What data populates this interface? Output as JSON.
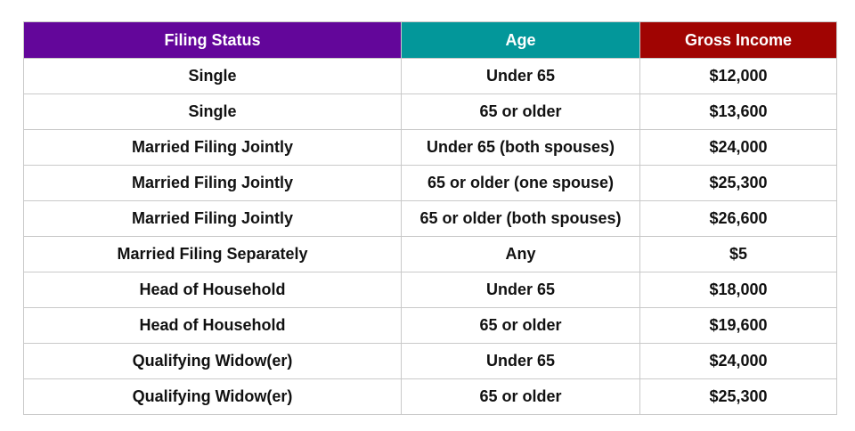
{
  "table": {
    "headers": [
      "Filing Status",
      "Age",
      "Gross Income"
    ],
    "header_colors": [
      "#63069a",
      "#03979a",
      "#a00402"
    ],
    "rows": [
      [
        "Single",
        "Under 65",
        "$12,000"
      ],
      [
        "Single",
        "65 or older",
        "$13,600"
      ],
      [
        "Married Filing Jointly",
        "Under 65 (both spouses)",
        "$24,000"
      ],
      [
        "Married Filing Jointly",
        "65 or older (one spouse)",
        "$25,300"
      ],
      [
        "Married Filing Jointly",
        "65 or older (both spouses)",
        "$26,600"
      ],
      [
        "Married Filing Separately",
        "Any",
        "$5"
      ],
      [
        "Head of Household",
        "Under 65",
        "$18,000"
      ],
      [
        "Head of Household",
        "65 or older",
        "$19,600"
      ],
      [
        "Qualifying Widow(er)",
        "Under 65",
        "$24,000"
      ],
      [
        "Qualifying Widow(er)",
        "65 or older",
        "$25,300"
      ]
    ]
  }
}
